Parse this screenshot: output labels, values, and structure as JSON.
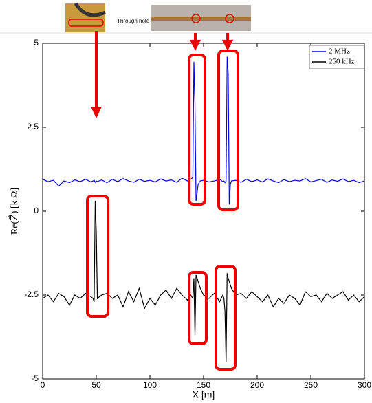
{
  "chart_data": {
    "type": "line",
    "x_label": "X [m]",
    "y_label": "Re(Z⃗) [k Ω]",
    "annotations": [
      "Through hole"
    ],
    "x": [
      0,
      5,
      10,
      15,
      20,
      25,
      30,
      35,
      40,
      45,
      47,
      48,
      49,
      50,
      51,
      55,
      60,
      65,
      70,
      75,
      80,
      85,
      90,
      95,
      100,
      105,
      110,
      115,
      120,
      125,
      130,
      135,
      138,
      140,
      141,
      142,
      143,
      145,
      147,
      150,
      155,
      160,
      165,
      168,
      169,
      170,
      171,
      172,
      173,
      174,
      175,
      176,
      180,
      185,
      190,
      195,
      200,
      205,
      210,
      215,
      220,
      225,
      230,
      235,
      240,
      245,
      250,
      255,
      260,
      265,
      270,
      275,
      280,
      285,
      290,
      295,
      300
    ],
    "series": [
      {
        "name": "2 MHz",
        "color": "#0000ff",
        "values": [
          0.95,
          0.88,
          0.92,
          0.75,
          0.9,
          0.85,
          0.93,
          0.88,
          0.95,
          0.87,
          0.9,
          0.92,
          0.86,
          0.9,
          0.88,
          0.93,
          0.85,
          0.95,
          0.88,
          0.97,
          0.9,
          0.86,
          0.95,
          0.89,
          0.92,
          0.87,
          0.96,
          0.9,
          0.93,
          0.86,
          0.98,
          0.9,
          0.95,
          1.0,
          4.45,
          3.2,
          0.3,
          0.8,
          0.9,
          0.92,
          0.87,
          0.9,
          0.95,
          0.88,
          0.9,
          0.85,
          0.9,
          4.6,
          4.1,
          0.2,
          0.8,
          0.9,
          0.92,
          0.86,
          0.95,
          0.88,
          0.93,
          0.87,
          0.96,
          0.9,
          0.85,
          0.94,
          0.88,
          0.92,
          0.9,
          0.97,
          0.87,
          0.91,
          0.95,
          0.86,
          0.93,
          0.89,
          0.96,
          0.88,
          0.92,
          0.85,
          0.9
        ]
      },
      {
        "name": "250 kHz",
        "color": "#000000",
        "values": [
          -2.6,
          -2.5,
          -2.7,
          -2.45,
          -2.55,
          -2.8,
          -2.5,
          -2.6,
          -2.45,
          -2.55,
          -2.6,
          -2.7,
          0.3,
          -0.6,
          -2.6,
          -2.5,
          -2.45,
          -2.6,
          -2.5,
          -2.85,
          -2.4,
          -2.7,
          -2.3,
          -2.9,
          -2.6,
          -2.8,
          -2.5,
          -2.35,
          -2.6,
          -2.3,
          -2.5,
          -2.65,
          -2.5,
          -2.6,
          -2.0,
          -3.7,
          -1.9,
          -2.1,
          -2.3,
          -2.5,
          -2.6,
          -2.45,
          -2.7,
          -2.5,
          -2.6,
          -3.0,
          -4.5,
          -1.85,
          -2.0,
          -2.1,
          -2.2,
          -2.3,
          -2.5,
          -2.45,
          -2.6,
          -2.4,
          -2.55,
          -2.7,
          -2.5,
          -2.85,
          -2.6,
          -2.75,
          -2.5,
          -2.6,
          -2.8,
          -2.4,
          -2.55,
          -2.5,
          -2.7,
          -2.45,
          -2.6,
          -2.5,
          -2.4,
          -2.65,
          -2.5,
          -2.7,
          -2.55
        ]
      }
    ],
    "xlim": [
      0,
      300
    ],
    "xticks": [
      0,
      50,
      100,
      150,
      200,
      250,
      300
    ],
    "ylim": [
      -5,
      5
    ],
    "yticks": [
      -5,
      -2.5,
      0,
      2.5,
      5
    ],
    "grid": false,
    "legend": "upper right"
  }
}
